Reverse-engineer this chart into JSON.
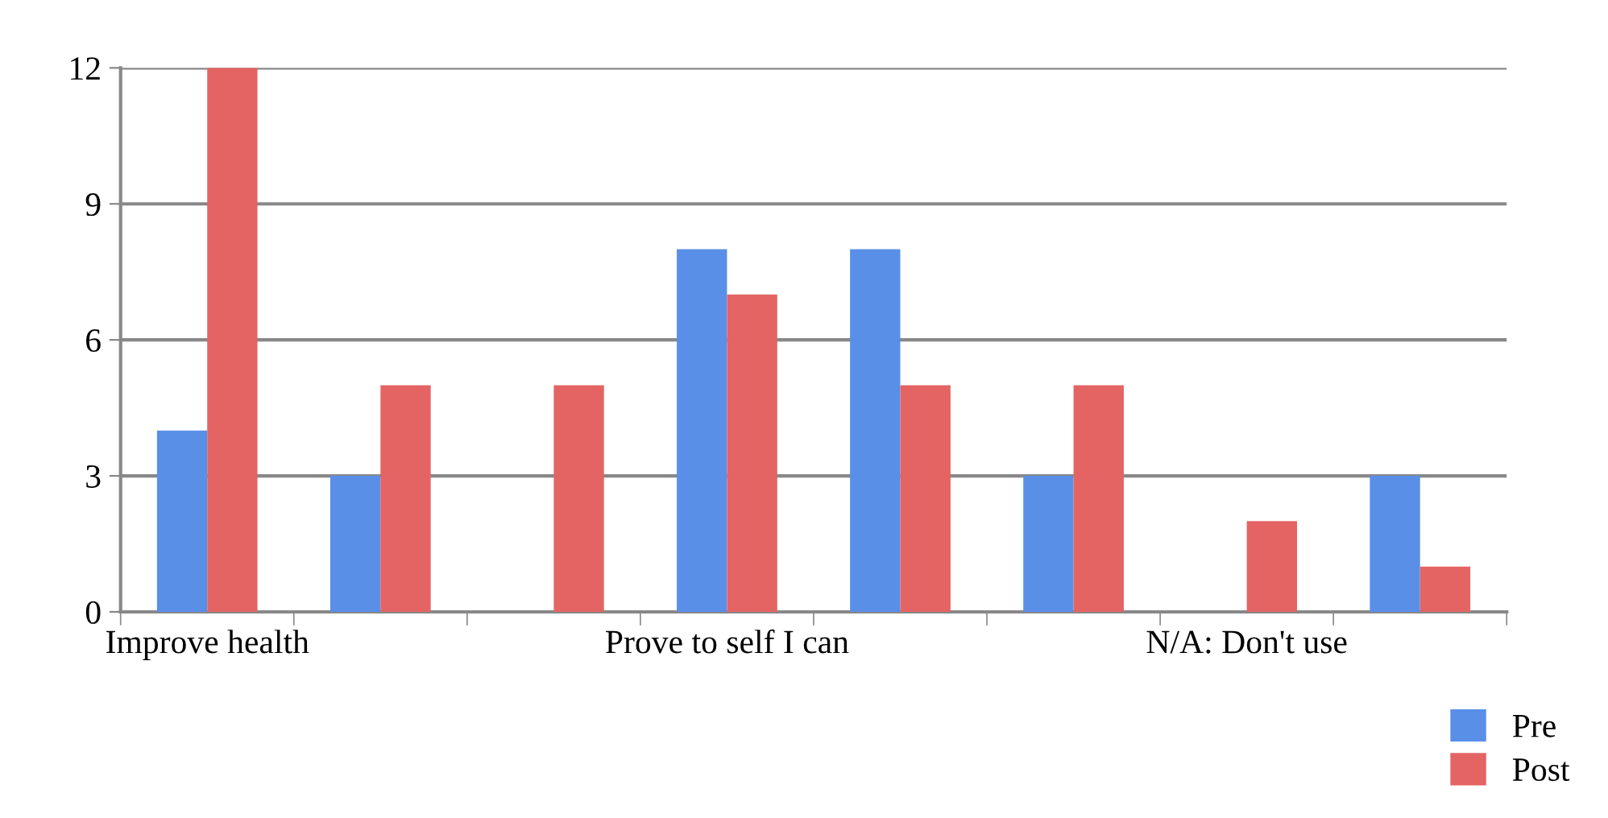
{
  "chart_data": {
    "type": "bar",
    "categories": [
      "Improve health",
      null,
      null,
      "Prove to self I can",
      null,
      null,
      "N/A: Don't use",
      null
    ],
    "series": [
      {
        "name": "Pre",
        "color": "#5a8fe8",
        "values": [
          4,
          3,
          0,
          8,
          8,
          3,
          0,
          3
        ]
      },
      {
        "name": "Post",
        "color": "#e46464",
        "values": [
          12,
          5,
          5,
          7,
          5,
          5,
          2,
          1
        ]
      }
    ],
    "ylim": [
      0,
      12
    ],
    "yticks": [
      0,
      3,
      6,
      9,
      12
    ],
    "grid": "y",
    "legend": "bottom right"
  }
}
